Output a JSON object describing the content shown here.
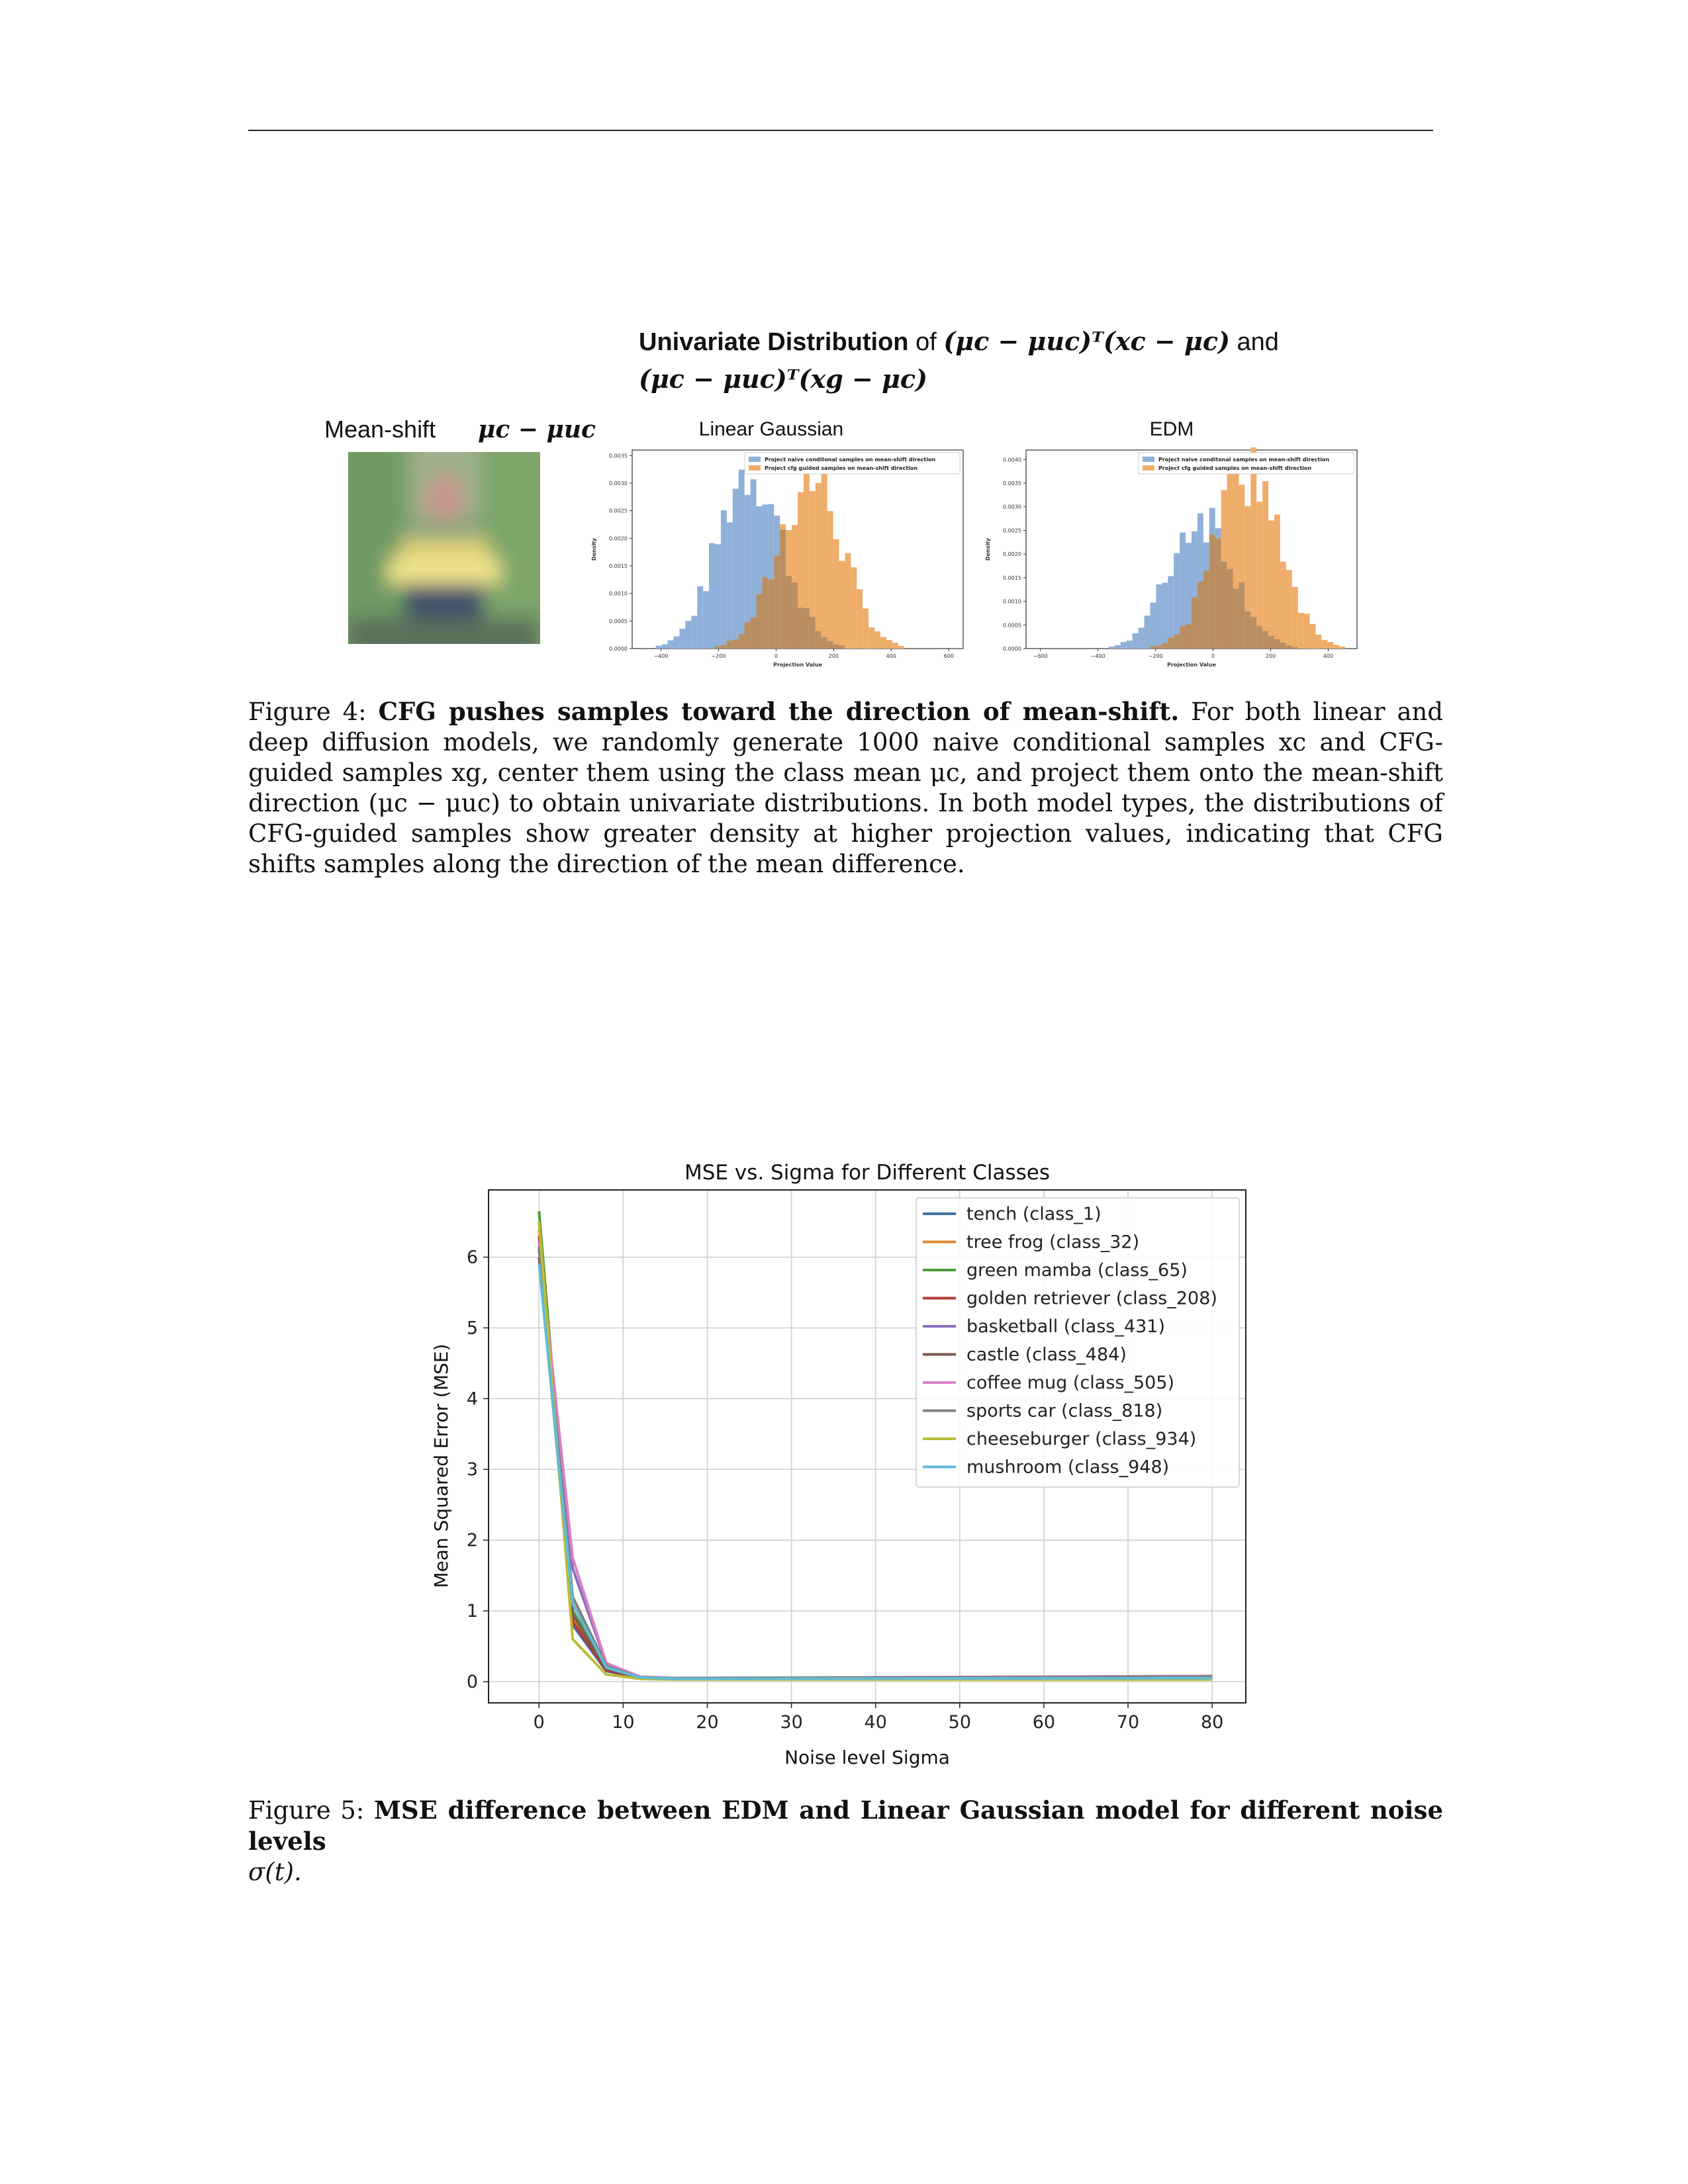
{
  "figure4": {
    "title_bold": "Univariate Distribution",
    "title_of": "of",
    "title_expr1": "(μc − μuc)ᵀ(xc − μc)",
    "title_and": "and",
    "title_expr2": "(μc − μuc)ᵀ(xg − μc)",
    "meanshift_label": "Mean-shift",
    "meanshift_expr": "μc − μuc",
    "caption": {
      "prefix": "Figure 4:",
      "bold": "CFG pushes samples toward the direction of mean-shift.",
      "text": "For both linear and deep diffusion models, we randomly generate 1000 naive conditional samples xc and CFG-guided samples xg, center them using the class mean μc, and project them onto the mean-shift direction (μc − μuc) to obtain univariate distributions. In both model types, the distributions of CFG-guided samples show greater density at higher projection values, indicating that CFG shifts samples along the direction of the mean difference."
    },
    "panels": [
      {
        "title": "Linear Gaussian",
        "legend": [
          "Project naive conditonal samples on mean-shift direction",
          "Project cfg guided samples on mean-shift direction"
        ],
        "ylabel": "Density",
        "xlabel": "Projection Value",
        "yticks": [
          "0.0000",
          "0.0005",
          "0.0010",
          "0.0015",
          "0.0020",
          "0.0025",
          "0.0030",
          "0.0035"
        ],
        "xticks": [
          "−400",
          "−200",
          "0",
          "200",
          "400",
          "600"
        ],
        "naive": {
          "mean": -90,
          "sd": 110,
          "peak": 0.0033
        },
        "cfg": {
          "mean": 120,
          "sd": 110,
          "peak": 0.0031
        }
      },
      {
        "title": "EDM",
        "legend": [
          "Project naive conditonal samples on mean-shift direction",
          "Project cfg guided samples on mean-shift direction"
        ],
        "ylabel": "Density",
        "xlabel": "Projection Value",
        "yticks": [
          "0.0000",
          "0.0005",
          "0.0010",
          "0.0015",
          "0.0020",
          "0.0025",
          "0.0030",
          "0.0035",
          "0.0040"
        ],
        "xticks": [
          "−600",
          "−400",
          "−200",
          "0",
          "200",
          "400"
        ],
        "naive": {
          "mean": -40,
          "sd": 110,
          "peak": 0.0028
        },
        "cfg": {
          "mean": 120,
          "sd": 110,
          "peak": 0.0037
        }
      }
    ],
    "colors": {
      "naive": "#8fb0d8",
      "cfg": "#efad6b",
      "overlap": "#b98f62"
    }
  },
  "figure5": {
    "caption": {
      "prefix": "Figure 5:",
      "bold": "MSE difference between EDM and Linear Gaussian model for different noise levels",
      "suffix_math": "σ(t)."
    }
  },
  "chart_data": {
    "type": "line",
    "title": "MSE vs. Sigma for Different Classes",
    "xlabel": "Noise level Sigma",
    "ylabel": "Mean Squared Error (MSE)",
    "xlim": [
      -6,
      84
    ],
    "ylim": [
      -0.3,
      6.95
    ],
    "xticks": [
      0,
      10,
      20,
      30,
      40,
      50,
      60,
      70,
      80
    ],
    "yticks": [
      0,
      1,
      2,
      3,
      4,
      5,
      6
    ],
    "grid": true,
    "legend_position": "top-right",
    "x": [
      0.002,
      4,
      8,
      12,
      16,
      80
    ],
    "series": [
      {
        "name": "tench (class_1)",
        "color": "#3f6fa6",
        "values": [
          6.2,
          0.8,
          0.15,
          0.05,
          0.04,
          0.08
        ]
      },
      {
        "name": "tree frog (class_32)",
        "color": "#df8a30",
        "values": [
          6.4,
          0.9,
          0.17,
          0.05,
          0.04,
          0.06
        ]
      },
      {
        "name": "green mamba (class_65)",
        "color": "#4f9a3a",
        "values": [
          6.65,
          1.0,
          0.2,
          0.06,
          0.04,
          0.05
        ]
      },
      {
        "name": "golden retriever (class_208)",
        "color": "#b43a37",
        "values": [
          6.3,
          0.85,
          0.16,
          0.05,
          0.04,
          0.06
        ]
      },
      {
        "name": "basketball (class_431)",
        "color": "#8a6fbf",
        "values": [
          6.1,
          1.6,
          0.25,
          0.07,
          0.05,
          0.07
        ]
      },
      {
        "name": "castle (class_484)",
        "color": "#7b5a4c",
        "values": [
          6.0,
          0.95,
          0.18,
          0.05,
          0.04,
          0.06
        ]
      },
      {
        "name": "coffee mug (class_505)",
        "color": "#d981c4",
        "values": [
          6.2,
          1.75,
          0.26,
          0.07,
          0.05,
          0.08
        ]
      },
      {
        "name": "sports car (class_818)",
        "color": "#7f7f7f",
        "values": [
          6.15,
          1.2,
          0.22,
          0.06,
          0.05,
          0.07
        ]
      },
      {
        "name": "cheeseburger (class_934)",
        "color": "#bcbd37",
        "values": [
          6.5,
          0.6,
          0.1,
          0.04,
          0.03,
          0.03
        ]
      },
      {
        "name": "mushroom (class_948)",
        "color": "#5fbcd8",
        "values": [
          5.9,
          1.1,
          0.2,
          0.06,
          0.04,
          0.05
        ]
      }
    ]
  }
}
